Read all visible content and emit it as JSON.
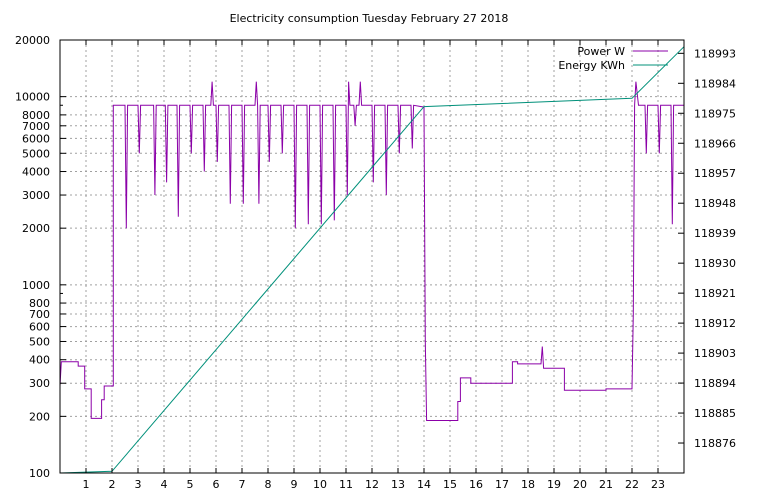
{
  "chart_data": {
    "type": "line",
    "title": "Electricity consumption Tuesday February 27 2018",
    "xlabel": "",
    "ylabel": "",
    "x_ticks": [
      "1",
      "2",
      "3",
      "4",
      "5",
      "6",
      "7",
      "8",
      "9",
      "10",
      "11",
      "12",
      "13",
      "14",
      "15",
      "16",
      "17",
      "18",
      "19",
      "20",
      "21",
      "22",
      "23"
    ],
    "xlim": [
      0,
      24
    ],
    "y_left": {
      "scale": "log",
      "lim": [
        100,
        20000
      ],
      "ticks": [
        100,
        200,
        300,
        400,
        500,
        600,
        700,
        800,
        1000,
        2000,
        3000,
        4000,
        5000,
        6000,
        7000,
        8000,
        10000,
        20000
      ],
      "tick_labels": [
        "100",
        "200",
        "300",
        "400",
        "500",
        "600",
        "700",
        "800",
        "1000",
        "2000",
        "3000",
        "4000",
        "5000",
        "6000",
        "7000",
        "8000",
        "10000",
        "20000"
      ]
    },
    "y_right": {
      "scale": "linear",
      "lim": [
        118867,
        118997
      ],
      "ticks": [
        118876,
        118885,
        118894,
        118903,
        118912,
        118921,
        118930,
        118939,
        118948,
        118957,
        118966,
        118975,
        118984,
        118993
      ],
      "tick_labels": [
        "118876",
        "118885",
        "118894",
        "118903",
        "118912",
        "118921",
        "118930",
        "118939",
        "118948",
        "118957",
        "118966",
        "118975",
        "118984",
        "118993"
      ]
    },
    "grid": true,
    "legend": "top-right",
    "series": [
      {
        "name": "Power W",
        "color": "#8b00a8",
        "axis": "left",
        "points": [
          [
            0,
            290
          ],
          [
            0.05,
            390
          ],
          [
            0.7,
            390
          ],
          [
            0.7,
            370
          ],
          [
            0.95,
            370
          ],
          [
            0.95,
            280
          ],
          [
            1.2,
            280
          ],
          [
            1.2,
            195
          ],
          [
            1.6,
            195
          ],
          [
            1.6,
            245
          ],
          [
            1.7,
            245
          ],
          [
            1.7,
            290
          ],
          [
            2.05,
            290
          ],
          [
            2.05,
            9000
          ],
          [
            2.5,
            9000
          ],
          [
            2.55,
            2000
          ],
          [
            2.6,
            9000
          ],
          [
            3.0,
            9000
          ],
          [
            3.05,
            5000
          ],
          [
            3.1,
            9000
          ],
          [
            3.6,
            9000
          ],
          [
            3.65,
            3000
          ],
          [
            3.7,
            9000
          ],
          [
            4.05,
            9000
          ],
          [
            4.1,
            3500
          ],
          [
            4.15,
            9000
          ],
          [
            4.5,
            9000
          ],
          [
            4.55,
            2300
          ],
          [
            4.6,
            9000
          ],
          [
            5.0,
            9000
          ],
          [
            5.05,
            5000
          ],
          [
            5.1,
            9000
          ],
          [
            5.5,
            9000
          ],
          [
            5.55,
            4000
          ],
          [
            5.6,
            9000
          ],
          [
            5.8,
            9000
          ],
          [
            5.85,
            12000
          ],
          [
            5.9,
            9000
          ],
          [
            6.0,
            9000
          ],
          [
            6.05,
            4500
          ],
          [
            6.1,
            9000
          ],
          [
            6.5,
            9000
          ],
          [
            6.55,
            2700
          ],
          [
            6.6,
            9000
          ],
          [
            7.0,
            9000
          ],
          [
            7.05,
            2700
          ],
          [
            7.1,
            9000
          ],
          [
            7.5,
            9000
          ],
          [
            7.55,
            12000
          ],
          [
            7.6,
            9000
          ],
          [
            7.65,
            2700
          ],
          [
            7.7,
            9000
          ],
          [
            8.0,
            9000
          ],
          [
            8.05,
            4500
          ],
          [
            8.1,
            9000
          ],
          [
            8.5,
            9000
          ],
          [
            8.55,
            5000
          ],
          [
            8.6,
            9000
          ],
          [
            9.0,
            9000
          ],
          [
            9.05,
            2000
          ],
          [
            9.1,
            9000
          ],
          [
            9.5,
            9000
          ],
          [
            9.55,
            2100
          ],
          [
            9.6,
            9000
          ],
          [
            10.0,
            9000
          ],
          [
            10.05,
            2100
          ],
          [
            10.1,
            9000
          ],
          [
            10.5,
            9000
          ],
          [
            10.55,
            2200
          ],
          [
            10.6,
            9000
          ],
          [
            11.0,
            9000
          ],
          [
            11.05,
            3000
          ],
          [
            11.1,
            12000
          ],
          [
            11.15,
            9000
          ],
          [
            11.3,
            9000
          ],
          [
            11.35,
            7000
          ],
          [
            11.4,
            9000
          ],
          [
            11.5,
            9000
          ],
          [
            11.55,
            12000
          ],
          [
            11.6,
            9000
          ],
          [
            12.0,
            9000
          ],
          [
            12.05,
            3500
          ],
          [
            12.1,
            9000
          ],
          [
            12.5,
            9000
          ],
          [
            12.55,
            3000
          ],
          [
            12.6,
            9000
          ],
          [
            13.0,
            9000
          ],
          [
            13.05,
            5000
          ],
          [
            13.1,
            9000
          ],
          [
            13.5,
            9000
          ],
          [
            13.55,
            5300
          ],
          [
            13.6,
            9000
          ],
          [
            14.0,
            8800
          ],
          [
            14.05,
            500
          ],
          [
            14.1,
            190
          ],
          [
            15.3,
            190
          ],
          [
            15.3,
            240
          ],
          [
            15.4,
            240
          ],
          [
            15.4,
            320
          ],
          [
            15.8,
            320
          ],
          [
            15.8,
            300
          ],
          [
            17.4,
            300
          ],
          [
            17.4,
            390
          ],
          [
            17.6,
            390
          ],
          [
            17.6,
            380
          ],
          [
            18.5,
            380
          ],
          [
            18.55,
            470
          ],
          [
            18.6,
            360
          ],
          [
            19.4,
            360
          ],
          [
            19.4,
            275
          ],
          [
            21.0,
            275
          ],
          [
            21.0,
            280
          ],
          [
            22.0,
            280
          ],
          [
            22.02,
            400
          ],
          [
            22.05,
            700
          ],
          [
            22.1,
            9000
          ],
          [
            22.15,
            12000
          ],
          [
            22.25,
            9000
          ],
          [
            22.5,
            9000
          ],
          [
            22.55,
            5000
          ],
          [
            22.6,
            9000
          ],
          [
            23.0,
            9000
          ],
          [
            23.05,
            5000
          ],
          [
            23.1,
            9000
          ],
          [
            23.5,
            9000
          ],
          [
            23.55,
            2100
          ],
          [
            23.6,
            9000
          ],
          [
            24,
            9000
          ]
        ]
      },
      {
        "name": "Energy KWh",
        "color": "#00907a",
        "axis": "right",
        "points": [
          [
            0,
            118867
          ],
          [
            2,
            118867.5
          ],
          [
            14,
            118977
          ],
          [
            22,
            118979.5
          ],
          [
            24,
            118995
          ]
        ]
      }
    ]
  }
}
